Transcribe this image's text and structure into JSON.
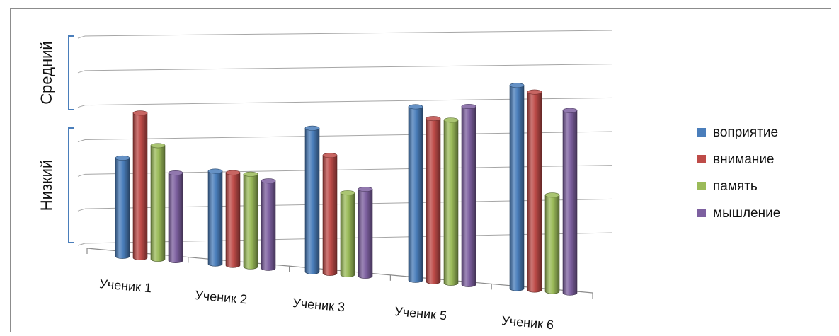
{
  "chart_data": {
    "type": "bar",
    "categories": [
      "Ученик 1",
      "Ученик 2",
      "Ученик 3",
      "Ученик 5",
      "Ученик 6"
    ],
    "series": [
      {
        "name": "воприятие",
        "color": "#4a7ebb",
        "values": [
          1.9,
          1.8,
          2.8,
          3.4,
          4.0
        ]
      },
      {
        "name": "внимание",
        "color": "#be4b48",
        "values": [
          2.8,
          1.8,
          2.3,
          3.2,
          3.9
        ]
      },
      {
        "name": "память",
        "color": "#9bbb59",
        "values": [
          2.2,
          1.8,
          1.6,
          3.2,
          1.9
        ]
      },
      {
        "name": "мышление",
        "color": "#7d60a0",
        "values": [
          1.7,
          1.7,
          1.7,
          3.5,
          3.6
        ]
      }
    ],
    "ylim": [
      0,
      4
    ],
    "grid": true,
    "legend_position": "right",
    "y_bands": [
      {
        "label": "Низкий",
        "from": 0,
        "to": 2.5
      },
      {
        "label": "Средний",
        "from": 2.5,
        "to": 4
      }
    ]
  }
}
